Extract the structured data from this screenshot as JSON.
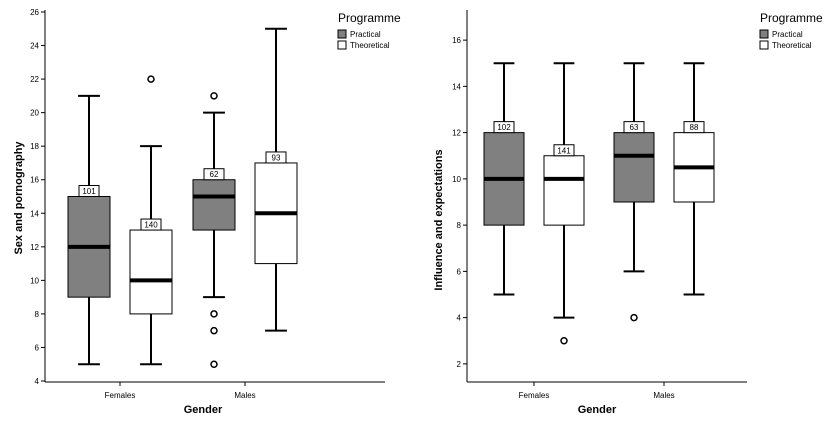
{
  "chart_data": [
    {
      "type": "box",
      "xlabel": "Gender",
      "ylabel": "Sex and pornography",
      "ylim": [
        4,
        26
      ],
      "yticks": [
        "4",
        "6",
        "8",
        "10",
        "12",
        "14",
        "16",
        "18",
        "20",
        "22",
        "24",
        "26"
      ],
      "categories": [
        "Females",
        "Males"
      ],
      "legend_title": "Programme",
      "series": [
        {
          "name": "Practical",
          "color": "#808080"
        },
        {
          "name": "Theoretical",
          "color": "#ffffff"
        }
      ],
      "boxes": [
        {
          "category": "Females",
          "series": "Practical",
          "min": 5,
          "q1": 9,
          "median": 12,
          "q3": 15,
          "max": 21,
          "n": "101",
          "outliers": []
        },
        {
          "category": "Females",
          "series": "Theoretical",
          "min": 5,
          "q1": 8,
          "median": 10,
          "q3": 13,
          "max": 18,
          "n": "140",
          "outliers": [
            22
          ]
        },
        {
          "category": "Males",
          "series": "Practical",
          "min": 9,
          "q1": 13,
          "median": 15,
          "q3": 16,
          "max": 20,
          "n": "62",
          "outliers": [
            21,
            8,
            7,
            5
          ]
        },
        {
          "category": "Males",
          "series": "Theoretical",
          "min": 7,
          "q1": 11,
          "median": 14,
          "q3": 17,
          "max": 25,
          "n": "93",
          "outliers": []
        }
      ]
    },
    {
      "type": "box",
      "xlabel": "Gender",
      "ylabel": "Influence and expectations",
      "ylim": [
        1,
        17
      ],
      "yticks": [
        "2",
        "4",
        "6",
        "8",
        "10",
        "12",
        "14",
        "16"
      ],
      "categories": [
        "Females",
        "Males"
      ],
      "legend_title": "Programme",
      "series": [
        {
          "name": "Practical",
          "color": "#808080"
        },
        {
          "name": "Theoretical",
          "color": "#ffffff"
        }
      ],
      "boxes": [
        {
          "category": "Females",
          "series": "Practical",
          "min": 5,
          "q1": 8,
          "median": 10,
          "q3": 12,
          "max": 15,
          "n": "102",
          "outliers": []
        },
        {
          "category": "Females",
          "series": "Theoretical",
          "min": 4,
          "q1": 8,
          "median": 10,
          "q3": 11,
          "max": 15,
          "n": "141",
          "outliers": [
            3
          ]
        },
        {
          "category": "Males",
          "series": "Practical",
          "min": 6,
          "q1": 9,
          "median": 11,
          "q3": 12,
          "max": 15,
          "n": "63",
          "outliers": [
            4
          ]
        },
        {
          "category": "Males",
          "series": "Theoretical",
          "min": 5,
          "q1": 9,
          "median": 10.5,
          "q3": 12,
          "max": 15,
          "n": "88",
          "outliers": []
        }
      ]
    }
  ]
}
